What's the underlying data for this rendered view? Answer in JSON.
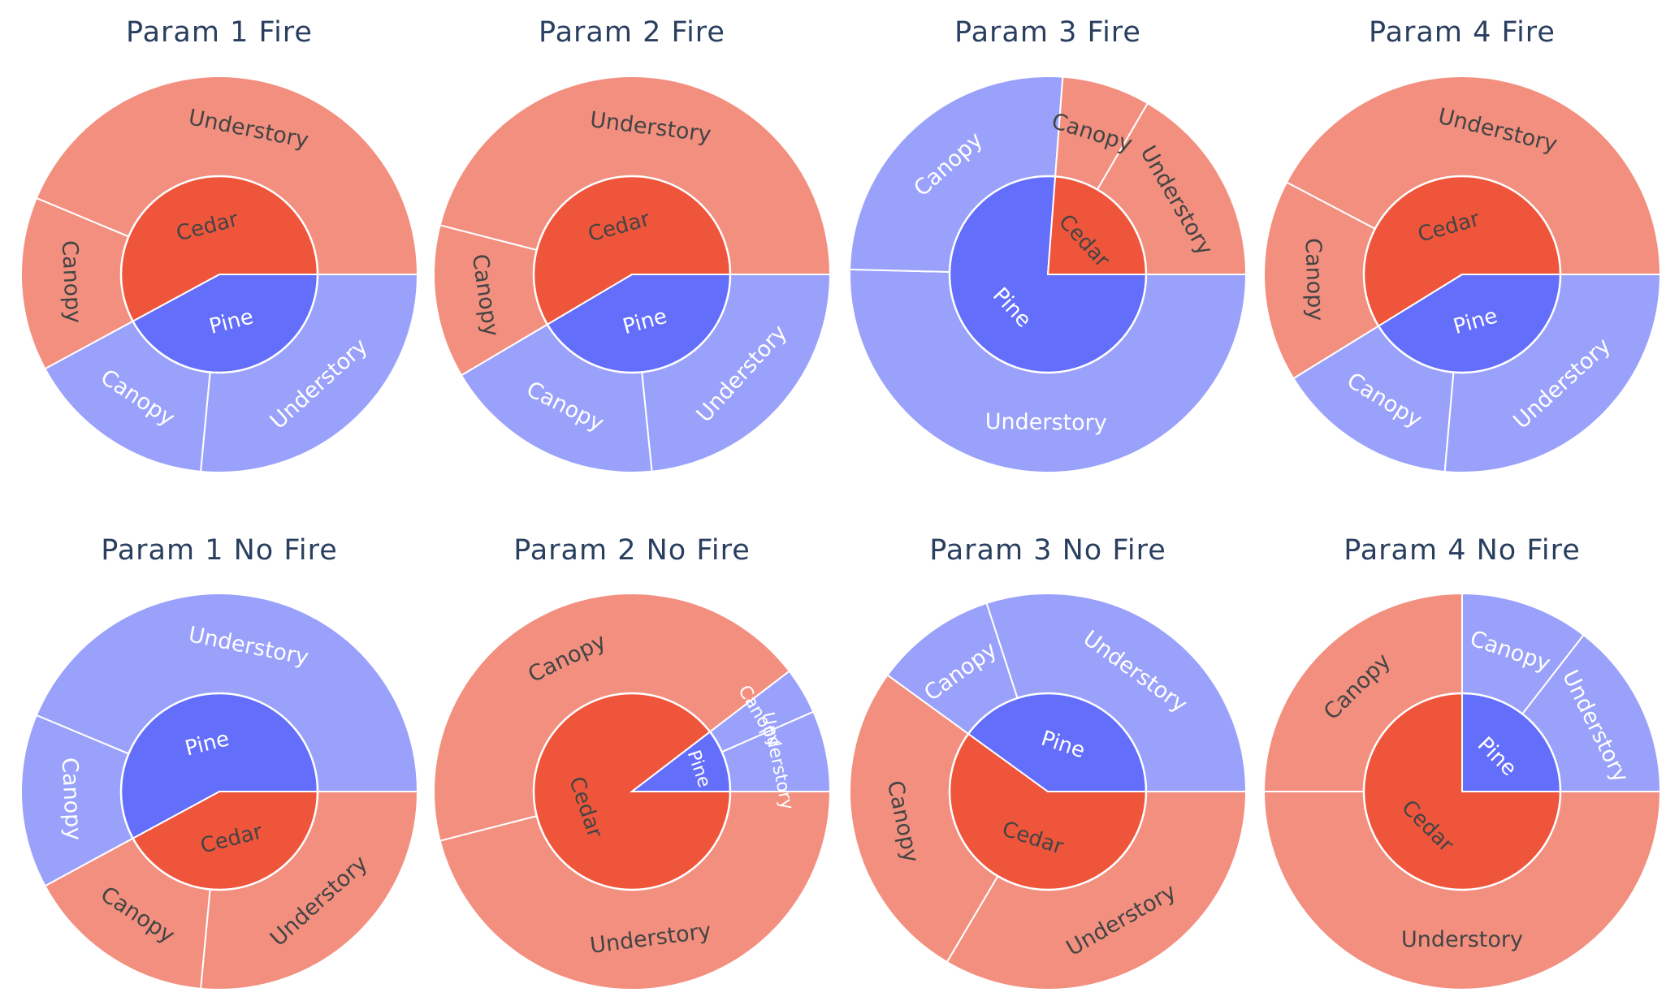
{
  "colors": {
    "pine_inner": "#636efa",
    "pine_outer": "#9aa1fb",
    "cedar_inner": "#ef553b",
    "cedar_outer": "#f38f7f",
    "title_text": "#2a3f5f",
    "label_light": "#ffffff",
    "label_dark": "#444444"
  },
  "chart_data": [
    {
      "type": "sunburst",
      "title": "Param 1 Fire",
      "children": [
        {
          "name": "Pine",
          "value": 0.421,
          "children": [
            {
              "name": "Understory",
              "value": 0.265
            },
            {
              "name": "Canopy",
              "value": 0.156
            }
          ]
        },
        {
          "name": "Cedar",
          "value": 0.579,
          "children": [
            {
              "name": "Canopy",
              "value": 0.142
            },
            {
              "name": "Understory",
              "value": 0.437
            }
          ]
        }
      ]
    },
    {
      "type": "sunburst",
      "title": "Param 2 Fire",
      "children": [
        {
          "name": "Pine",
          "value": 0.415,
          "children": [
            {
              "name": "Understory",
              "value": 0.234
            },
            {
              "name": "Canopy",
              "value": 0.181
            }
          ]
        },
        {
          "name": "Cedar",
          "value": 0.585,
          "children": [
            {
              "name": "Canopy",
              "value": 0.125
            },
            {
              "name": "Understory",
              "value": 0.46
            }
          ]
        }
      ]
    },
    {
      "type": "sunburst",
      "title": "Param 3 Fire",
      "children": [
        {
          "name": "Pine",
          "value": 0.762,
          "children": [
            {
              "name": "Understory",
              "value": 0.504
            },
            {
              "name": "Canopy",
              "value": 0.258
            }
          ]
        },
        {
          "name": "Cedar",
          "value": 0.238,
          "children": [
            {
              "name": "Canopy",
              "value": 0.072
            },
            {
              "name": "Understory",
              "value": 0.166
            }
          ]
        }
      ]
    },
    {
      "type": "sunburst",
      "title": "Param 4 Fire",
      "children": [
        {
          "name": "Pine",
          "value": 0.412,
          "children": [
            {
              "name": "Understory",
              "value": 0.264
            },
            {
              "name": "Canopy",
              "value": 0.148
            }
          ]
        },
        {
          "name": "Cedar",
          "value": 0.588,
          "children": [
            {
              "name": "Canopy",
              "value": 0.165
            },
            {
              "name": "Understory",
              "value": 0.423
            }
          ]
        }
      ]
    },
    {
      "type": "sunburst",
      "title": "Param 1 No Fire",
      "children": [
        {
          "name": "Cedar",
          "value": 0.421,
          "children": [
            {
              "name": "Understory",
              "value": 0.265
            },
            {
              "name": "Canopy",
              "value": 0.156
            }
          ]
        },
        {
          "name": "Pine",
          "value": 0.579,
          "children": [
            {
              "name": "Canopy",
              "value": 0.142
            },
            {
              "name": "Understory",
              "value": 0.437
            }
          ]
        }
      ]
    },
    {
      "type": "sunburst",
      "title": "Param 2 No Fire",
      "children": [
        {
          "name": "Cedar",
          "value": 0.896,
          "children": [
            {
              "name": "Understory",
              "value": 0.46
            },
            {
              "name": "Canopy",
              "value": 0.436
            }
          ]
        },
        {
          "name": "Pine",
          "value": 0.104,
          "children": [
            {
              "name": "Canopy",
              "value": 0.038
            },
            {
              "name": "Understory",
              "value": 0.066
            }
          ]
        }
      ]
    },
    {
      "type": "sunburst",
      "title": "Param 3 No Fire",
      "children": [
        {
          "name": "Cedar",
          "value": 0.6,
          "children": [
            {
              "name": "Understory",
              "value": 0.335
            },
            {
              "name": "Canopy",
              "value": 0.265
            }
          ]
        },
        {
          "name": "Pine",
          "value": 0.4,
          "children": [
            {
              "name": "Canopy",
              "value": 0.1
            },
            {
              "name": "Understory",
              "value": 0.3
            }
          ]
        }
      ]
    },
    {
      "type": "sunburst",
      "title": "Param 4 No Fire",
      "children": [
        {
          "name": "Cedar",
          "value": 0.75,
          "children": [
            {
              "name": "Understory",
              "value": 0.5
            },
            {
              "name": "Canopy",
              "value": 0.25
            }
          ]
        },
        {
          "name": "Pine",
          "value": 0.25,
          "children": [
            {
              "name": "Canopy",
              "value": 0.105
            },
            {
              "name": "Understory",
              "value": 0.145
            }
          ]
        }
      ]
    }
  ]
}
